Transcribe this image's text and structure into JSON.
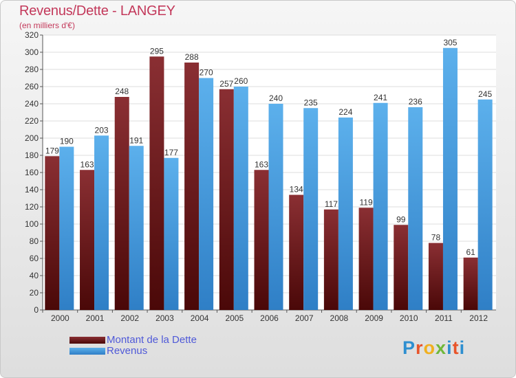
{
  "chart_data": {
    "type": "bar",
    "title": "Revenus/Dette - LANGEY",
    "subtitle": "(en milliers d'€)",
    "categories": [
      "2000",
      "2001",
      "2002",
      "2003",
      "2004",
      "2005",
      "2006",
      "2007",
      "2008",
      "2009",
      "2010",
      "2011",
      "2012"
    ],
    "series": [
      {
        "name": "Montant de la Dette",
        "values": [
          179,
          163,
          248,
          295,
          288,
          257,
          163,
          134,
          117,
          119,
          99,
          78,
          61
        ],
        "color": "#7a1f24"
      },
      {
        "name": "Revenus",
        "values": [
          190,
          203,
          191,
          177,
          270,
          260,
          240,
          235,
          224,
          241,
          236,
          305,
          245
        ],
        "color": "#4fa6e6"
      }
    ],
    "ylim": [
      0,
      320
    ],
    "ytick_step": 20,
    "grid": true,
    "legend_position": "bottom-left"
  },
  "logo": {
    "text": "Proxiti",
    "colors": [
      "#2e8fd0",
      "#e8542a",
      "#f0b020",
      "#6fb83a",
      "#2e8fd0",
      "#e8542a",
      "#2e8fd0"
    ]
  }
}
